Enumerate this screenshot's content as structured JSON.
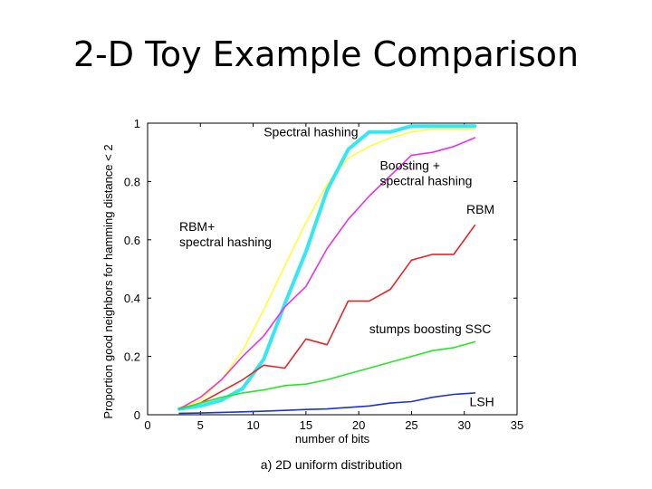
{
  "slide": {
    "title": "2-D Toy Example Comparison"
  },
  "chart_data": {
    "type": "line",
    "xlabel": "number of bits",
    "ylabel": "Proportion good neighbors for hamming distance < 2",
    "caption": "a) 2D uniform distribution",
    "xlim": [
      0,
      35
    ],
    "ylim": [
      0,
      1
    ],
    "xticks": [
      0,
      5,
      10,
      15,
      20,
      25,
      30,
      35
    ],
    "yticks": [
      0,
      0.2,
      0.4,
      0.6,
      0.8,
      1
    ],
    "grid": false,
    "legend": "none (inline annotations)",
    "series": [
      {
        "name": "Spectral hashing",
        "color": "#ffff33",
        "width": 1.6,
        "x": [
          3,
          5,
          7,
          9,
          11,
          13,
          15,
          17,
          19,
          21,
          23,
          25,
          27,
          29,
          31
        ],
        "y": [
          0.02,
          0.05,
          0.12,
          0.22,
          0.36,
          0.51,
          0.66,
          0.79,
          0.88,
          0.92,
          0.95,
          0.97,
          0.98,
          0.98,
          0.98
        ]
      },
      {
        "name": "RBM+ spectral hashing",
        "color": "#33e8f5",
        "width": 4,
        "x": [
          3,
          5,
          7,
          9,
          11,
          13,
          15,
          17,
          19,
          21,
          23,
          25,
          27,
          29,
          31
        ],
        "y": [
          0.02,
          0.03,
          0.05,
          0.09,
          0.19,
          0.38,
          0.56,
          0.77,
          0.91,
          0.97,
          0.97,
          0.99,
          0.99,
          0.99,
          0.99
        ]
      },
      {
        "name": "Boosting + spectral hashing",
        "color": "#e833e8",
        "width": 1.6,
        "x": [
          3,
          5,
          7,
          9,
          11,
          13,
          15,
          17,
          19,
          21,
          23,
          25,
          27,
          29,
          31
        ],
        "y": [
          0.02,
          0.06,
          0.12,
          0.2,
          0.27,
          0.37,
          0.44,
          0.57,
          0.67,
          0.75,
          0.82,
          0.89,
          0.9,
          0.92,
          0.95
        ]
      },
      {
        "name": "RBM",
        "color": "#e62626",
        "width": 1.6,
        "x": [
          3,
          5,
          7,
          9,
          11,
          13,
          15,
          17,
          19,
          21,
          23,
          25,
          27,
          29,
          31
        ],
        "y": [
          0.02,
          0.04,
          0.08,
          0.12,
          0.17,
          0.16,
          0.26,
          0.24,
          0.39,
          0.39,
          0.43,
          0.53,
          0.55,
          0.55,
          0.65
        ]
      },
      {
        "name": "stumps boosting SSC",
        "color": "#26e626",
        "width": 1.6,
        "x": [
          3,
          5,
          7,
          9,
          11,
          13,
          15,
          17,
          19,
          21,
          23,
          25,
          27,
          29,
          31
        ],
        "y": [
          0.02,
          0.04,
          0.06,
          0.075,
          0.085,
          0.1,
          0.105,
          0.12,
          0.14,
          0.16,
          0.18,
          0.2,
          0.22,
          0.23,
          0.25
        ]
      },
      {
        "name": "LSH",
        "color": "#2030d8",
        "width": 1.6,
        "x": [
          3,
          5,
          7,
          9,
          11,
          13,
          15,
          17,
          19,
          21,
          23,
          25,
          27,
          29,
          31
        ],
        "y": [
          0.005,
          0.006,
          0.008,
          0.01,
          0.012,
          0.015,
          0.018,
          0.02,
          0.025,
          0.03,
          0.04,
          0.045,
          0.06,
          0.07,
          0.075
        ]
      }
    ],
    "annotations": [
      {
        "lines": [
          "Spectral hashing"
        ],
        "x": 11,
        "y": 0.955
      },
      {
        "lines": [
          "Boosting +",
          "spectral hashing"
        ],
        "x": 22,
        "y": 0.84
      },
      {
        "lines": [
          "RBM"
        ],
        "x": 30.2,
        "y": 0.69
      },
      {
        "lines": [
          "RBM+",
          "spectral hashing"
        ],
        "x": 3,
        "y": 0.63
      },
      {
        "lines": [
          "stumps boosting SSC"
        ],
        "x": 21,
        "y": 0.28
      },
      {
        "lines": [
          "LSH"
        ],
        "x": 30.5,
        "y": 0.03
      }
    ]
  }
}
